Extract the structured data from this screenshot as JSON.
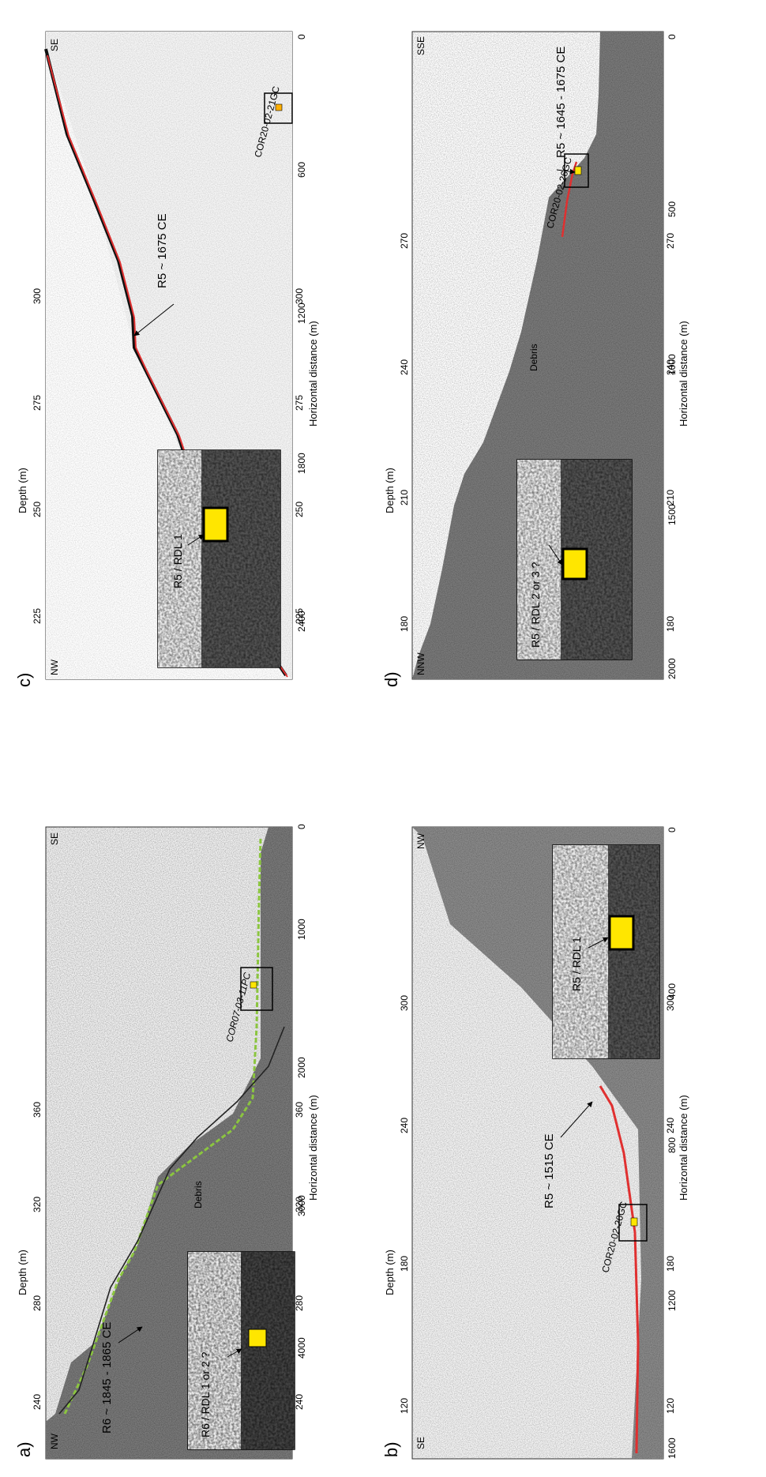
{
  "panels": {
    "a": {
      "letter": "a)",
      "ylabel": "Depth (m)",
      "xlabel": "Horizontal distance (m)",
      "corner_left": "NW",
      "corner_right": "SE",
      "yticks_left": [
        "240",
        "280",
        "320",
        "360"
      ],
      "yticks_right": [
        "240",
        "280",
        "320",
        "360"
      ],
      "xticks": [
        "4000",
        "3000",
        "2000",
        "1000",
        "0"
      ],
      "reflector_label": "R6 ~ 1845 - 1865 CE",
      "debris_label": "Debris",
      "core_label": "COR07-03-11PC",
      "inset_label": "R6 / RDL 1 or 2 ?",
      "reflector_color": "#8bc53f"
    },
    "b": {
      "letter": "b)",
      "ylabel": "Depth (m)",
      "xlabel": "Horizontal distance (m)",
      "corner_left": "SE",
      "corner_right": "NW",
      "yticks_left": [
        "120",
        "180",
        "240",
        "300"
      ],
      "yticks_right": [
        "120",
        "180",
        "240",
        "300"
      ],
      "xticks": [
        "1600",
        "1200",
        "800",
        "400",
        "0"
      ],
      "reflector_label": "R5 ~ 1515 CE",
      "core_label": "COR20-02-20GC",
      "inset_label": "R5 / RDL 1",
      "reflector_color": "#e03030"
    },
    "c": {
      "letter": "c)",
      "ylabel": "Depth (m)",
      "xlabel": "Horizontal distance (m)",
      "corner_left": "NW",
      "corner_right": "SE",
      "yticks_left": [
        "225",
        "250",
        "275",
        "300"
      ],
      "yticks_right": [
        "225",
        "250",
        "275",
        "300"
      ],
      "xticks": [
        "2400",
        "1800",
        "1200",
        "600",
        "0"
      ],
      "reflector_label": "R5 ~ 1675 CE",
      "core_label": "COR20-02-21GC",
      "inset_label": "R5 / RDL 1",
      "reflector_color": "#e03030"
    },
    "d": {
      "letter": "d)",
      "ylabel": "Depth (m)",
      "xlabel": "Horizontal distance (m)",
      "corner_left": "NNW",
      "corner_right": "SSE",
      "yticks_left": [
        "180",
        "210",
        "240",
        "270"
      ],
      "yticks_right": [
        "180",
        "210",
        "240",
        "270"
      ],
      "xticks": [
        "2000",
        "1500",
        "1000",
        "500",
        "0"
      ],
      "reflector_label": "R5 ~ 1645 - 1675 CE",
      "debris_label": "Debris",
      "core_label": "COR20-02-26GC",
      "inset_label": "R5 / RDL 2 or 3 ?",
      "reflector_color": "#e03030"
    }
  }
}
